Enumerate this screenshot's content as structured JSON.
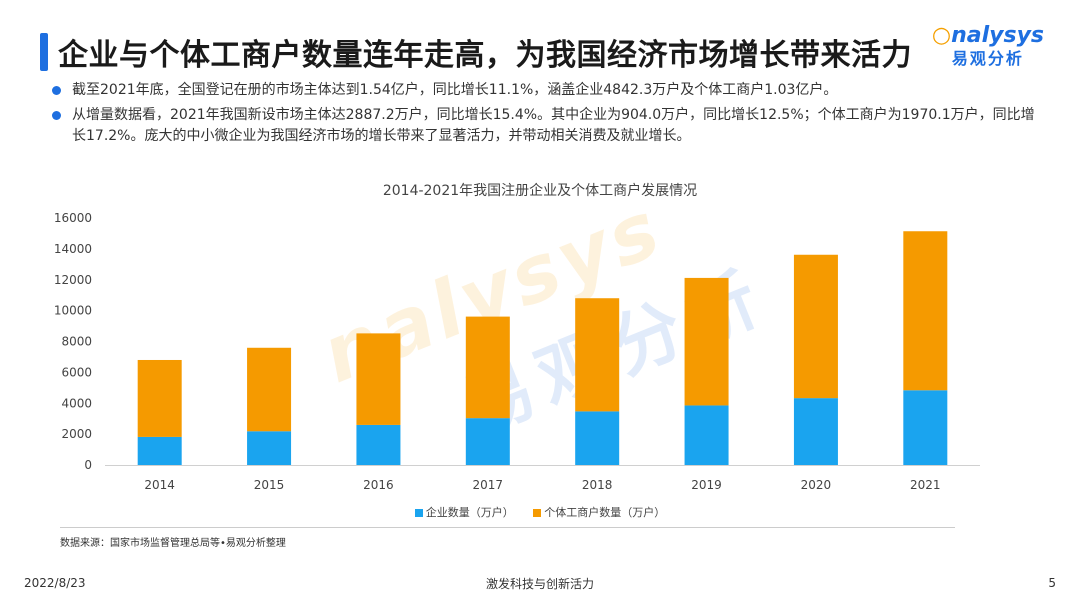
{
  "header": {
    "title": "企业与个体工商户数量连年走高，为我国经济市场增长带来活力"
  },
  "logo": {
    "text_prefix": "○",
    "text_rest": "nalysys",
    "cn": "易观分析"
  },
  "bullets": [
    "截至2021年底，全国登记在册的市场主体达到1.54亿户，同比增长11.1%，涵盖企业4842.3万户及个体工商户1.03亿户。",
    "从增量数据看，2021年我国新设市场主体达2887.2万户，同比增长15.4%。其中企业为904.0万户，同比增长12.5%；个体工商户为1970.1万户，同比增长17.2%。庞大的中小微企业为我国经济市场的增长带来了显著活力，并带动相关消费及就业增长。"
  ],
  "chart_data": {
    "type": "bar",
    "stacked": true,
    "title": "2014-2021年我国注册企业及个体工商户发展情况",
    "categories": [
      "2014",
      "2015",
      "2016",
      "2017",
      "2018",
      "2019",
      "2020",
      "2021"
    ],
    "series": [
      {
        "name": "企业数量（万户）",
        "color": "#1aa4ef",
        "values": [
          1819,
          2186,
          2596,
          3034,
          3474,
          3858,
          4331,
          4842
        ]
      },
      {
        "name": "个体工商户数量（万户）",
        "color": "#f59a00",
        "values": [
          4984,
          5408,
          5930,
          6579,
          7329,
          8261,
          9288,
          10300
        ]
      }
    ],
    "ylim": [
      0,
      16000
    ],
    "yticks": [
      0,
      2000,
      4000,
      6000,
      8000,
      10000,
      12000,
      14000,
      16000
    ],
    "xlabel": "",
    "ylabel": "",
    "grid": false,
    "legend": "bottom"
  },
  "watermark": {
    "en": "nalysys",
    "cn": "易观分析"
  },
  "source": "数据来源：国家市场监督管理总局等•易观分析整理",
  "footer": {
    "date": "2022/8/23",
    "center": "激发科技与创新活力",
    "page": "5"
  }
}
